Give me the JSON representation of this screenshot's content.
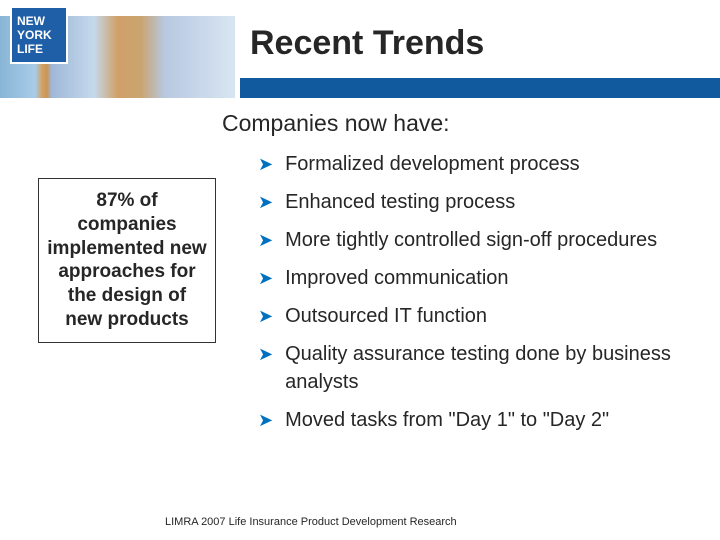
{
  "logo": {
    "line1": "NEW",
    "line2": "YORK",
    "line3": "LIFE",
    "bg_color": "#1f5fa8",
    "text_color": "#ffffff"
  },
  "header": {
    "title": "Recent Trends",
    "title_color": "#262626",
    "title_fontsize": 34,
    "bar_color": "#125a9e"
  },
  "subtitle": "Companies now have:",
  "callout": {
    "text": "87% of companies implemented new approaches for the design of new products",
    "border_color": "#333333",
    "fontsize": 19
  },
  "bullets": {
    "arrow_color": "#0070c0",
    "text_color": "#262626",
    "fontsize": 20,
    "items": [
      "Formalized development process",
      "Enhanced testing process",
      "More tightly controlled sign-off procedures",
      "Improved  communication",
      "Outsourced IT function",
      "Quality assurance testing done by business analysts",
      "Moved tasks from \"Day 1\" to \"Day 2\""
    ]
  },
  "footer": "LIMRA 2007 Life Insurance Product Development Research"
}
